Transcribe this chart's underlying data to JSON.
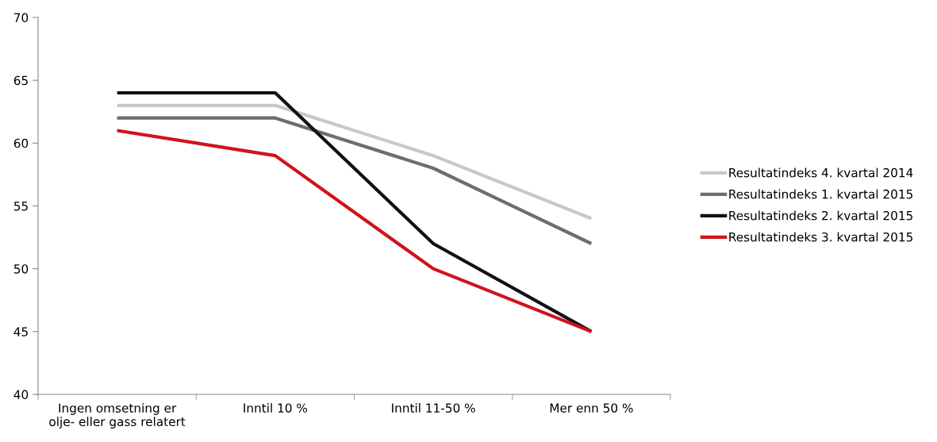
{
  "chart_data": {
    "type": "line",
    "categories": [
      "Ingen omsetning er\nolje- eller gass relatert",
      "Inntil 10 %",
      "Inntil 11-50 %",
      "Mer enn 50 %"
    ],
    "series": [
      {
        "name": "Resultatindeks 4. kvartal 2014",
        "color": "#c8c8c8",
        "values": [
          63,
          63,
          59,
          54
        ]
      },
      {
        "name": "Resultatindeks 1. kvartal 2015",
        "color": "#6e6e6e",
        "values": [
          62,
          62,
          58,
          52
        ]
      },
      {
        "name": "Resultatindeks 2. kvartal 2015",
        "color": "#111111",
        "values": [
          64,
          64,
          52,
          45
        ]
      },
      {
        "name": "Resultatindeks 3. kvartal 2015",
        "color": "#d0131b",
        "values": [
          61,
          59,
          50,
          45
        ]
      }
    ],
    "ylim": [
      40,
      70
    ],
    "yticks": [
      40,
      45,
      50,
      55,
      60,
      65,
      70
    ],
    "grid": false,
    "legend": "right",
    "marker": "none",
    "line_style": "solid"
  }
}
